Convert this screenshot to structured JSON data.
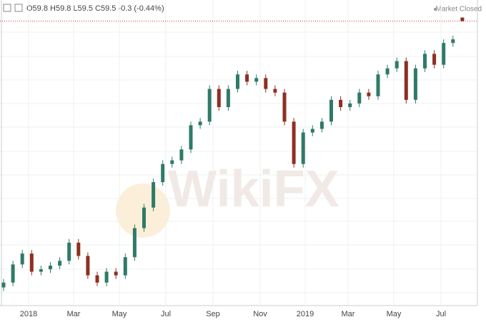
{
  "chart_data": {
    "type": "candlestick",
    "ohlc_label": "O59.8 H59.8 L59.5 C59.5 -0.3 (-0.44%)",
    "status": "Market Closed",
    "watermark": "WikiFX",
    "xtick_labels": [
      "2018",
      "Mar",
      "May",
      "Jul",
      "Sep",
      "Nov",
      "2019",
      "Mar",
      "May",
      "Jul"
    ],
    "open": [
      37.5,
      37.9,
      39.4,
      40.3,
      38.8,
      39.0,
      39.3,
      39.7,
      41.2,
      40.1,
      38.5,
      37.9,
      38.8,
      38.5,
      40.0,
      42.4,
      44.1,
      46.2,
      47.7,
      48.0,
      48.9,
      50.9,
      51.2,
      53.9,
      52.4,
      53.9,
      55.1,
      54.5,
      54.8,
      53.9,
      53.6,
      51.2,
      47.7,
      50.3,
      50.6,
      51.2,
      53.0,
      52.4,
      52.7,
      53.6,
      53.3,
      55.1,
      55.6,
      56.2,
      53.0,
      55.6,
      56.8,
      55.9,
      57.7,
      59.8
    ],
    "high": [
      38.2,
      39.7,
      40.6,
      40.6,
      39.3,
      39.6,
      40.0,
      41.5,
      41.5,
      40.4,
      38.8,
      39.1,
      39.1,
      40.3,
      42.7,
      44.4,
      46.5,
      48.0,
      48.3,
      49.2,
      51.2,
      51.5,
      54.2,
      54.2,
      54.2,
      55.4,
      55.4,
      55.1,
      55.1,
      54.2,
      53.9,
      51.5,
      50.6,
      50.9,
      51.5,
      53.3,
      53.3,
      53.0,
      53.9,
      53.9,
      55.4,
      55.9,
      56.5,
      56.5,
      55.9,
      57.1,
      57.1,
      58.0,
      58.3,
      59.8
    ],
    "low": [
      37.2,
      37.6,
      39.1,
      38.5,
      38.5,
      38.7,
      39.0,
      39.4,
      39.8,
      38.2,
      37.6,
      37.6,
      38.2,
      38.2,
      39.7,
      42.1,
      43.8,
      45.9,
      47.4,
      47.7,
      48.6,
      50.6,
      50.9,
      52.1,
      52.1,
      53.6,
      54.2,
      54.2,
      53.6,
      53.3,
      50.9,
      47.4,
      47.4,
      50.0,
      50.3,
      50.9,
      52.1,
      52.1,
      52.4,
      53.0,
      53.0,
      54.8,
      55.3,
      52.7,
      52.7,
      55.3,
      55.6,
      55.6,
      57.4,
      59.5
    ],
    "close": [
      37.9,
      39.4,
      40.3,
      38.8,
      39.0,
      39.3,
      39.7,
      41.2,
      40.1,
      38.5,
      37.9,
      38.8,
      38.5,
      40.0,
      42.4,
      44.1,
      46.2,
      47.7,
      48.0,
      48.9,
      50.9,
      51.2,
      53.9,
      52.4,
      53.9,
      55.1,
      54.5,
      54.8,
      53.9,
      53.6,
      51.2,
      47.7,
      50.3,
      50.6,
      51.2,
      53.0,
      52.4,
      52.7,
      53.6,
      53.3,
      55.1,
      55.6,
      56.2,
      53.0,
      55.6,
      56.8,
      55.9,
      57.7,
      58.0,
      59.5
    ],
    "up_color": "#2f7a68",
    "down_color": "#8e2f22",
    "last_line_color": "#c0392b",
    "ylim": [
      36,
      61.25
    ]
  }
}
